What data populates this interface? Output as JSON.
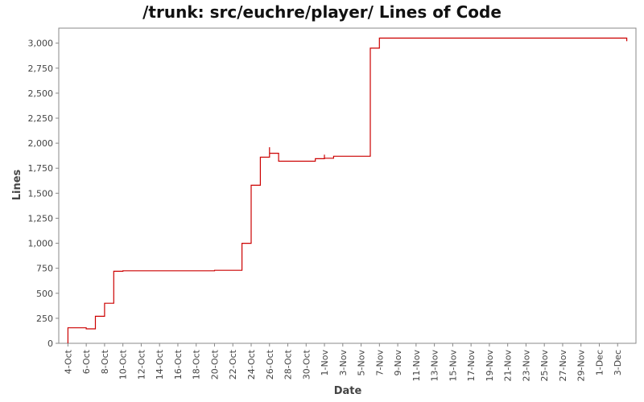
{
  "chart_data": {
    "type": "line",
    "title": "/trunk: src/euchre/player/ Lines of Code",
    "xlabel": "Date",
    "ylabel": "Lines",
    "y_ticks": [
      "0",
      "250",
      "500",
      "750",
      "1,000",
      "1,250",
      "1,500",
      "1,750",
      "2,000",
      "2,250",
      "2,500",
      "2,750",
      "3,000"
    ],
    "ylim": [
      0,
      3150
    ],
    "x_ticks": [
      "4-Oct",
      "6-Oct",
      "8-Oct",
      "10-Oct",
      "12-Oct",
      "14-Oct",
      "16-Oct",
      "18-Oct",
      "20-Oct",
      "22-Oct",
      "24-Oct",
      "26-Oct",
      "28-Oct",
      "30-Oct",
      "1-Nov",
      "3-Nov",
      "5-Nov",
      "7-Nov",
      "9-Nov",
      "11-Nov",
      "13-Nov",
      "15-Nov",
      "17-Nov",
      "19-Nov",
      "21-Nov",
      "23-Nov",
      "25-Nov",
      "27-Nov",
      "29-Nov",
      "1-Dec",
      "3-Dec"
    ],
    "xlim": [
      "3-Oct",
      "5-Dec"
    ],
    "line_color": "#cc0000",
    "grid": false,
    "series": [
      {
        "x": [
          "4-Oct",
          "4-Oct",
          "5-Oct",
          "6-Oct",
          "7-Oct",
          "7-Oct",
          "8-Oct",
          "8-Oct",
          "9-Oct",
          "9-Oct",
          "9-Oct",
          "10-Oct",
          "18-Oct",
          "20-Oct",
          "23-Oct",
          "23-Oct",
          "23-Oct",
          "24-Oct",
          "24-Oct",
          "24-Oct",
          "24-Oct",
          "25-Oct",
          "25-Oct",
          "26-Oct",
          "26-Oct",
          "27-Oct",
          "31-Oct",
          "31-Oct",
          "1-Nov",
          "1-Nov",
          "1-Nov",
          "2-Nov",
          "6-Nov",
          "6-Nov",
          "6-Nov",
          "7-Nov",
          "4-Dec",
          "4-Dec"
        ],
        "y": [
          0,
          155,
          155,
          145,
          270,
          270,
          300,
          400,
          400,
          580,
          720,
          725,
          725,
          730,
          730,
          830,
          1000,
          1110,
          1110,
          1380,
          1580,
          1860,
          1860,
          1960,
          1900,
          1820,
          1820,
          1845,
          1845,
          1885,
          1850,
          1870,
          1870,
          2050,
          2950,
          3050,
          3050,
          3020
        ]
      }
    ]
  }
}
